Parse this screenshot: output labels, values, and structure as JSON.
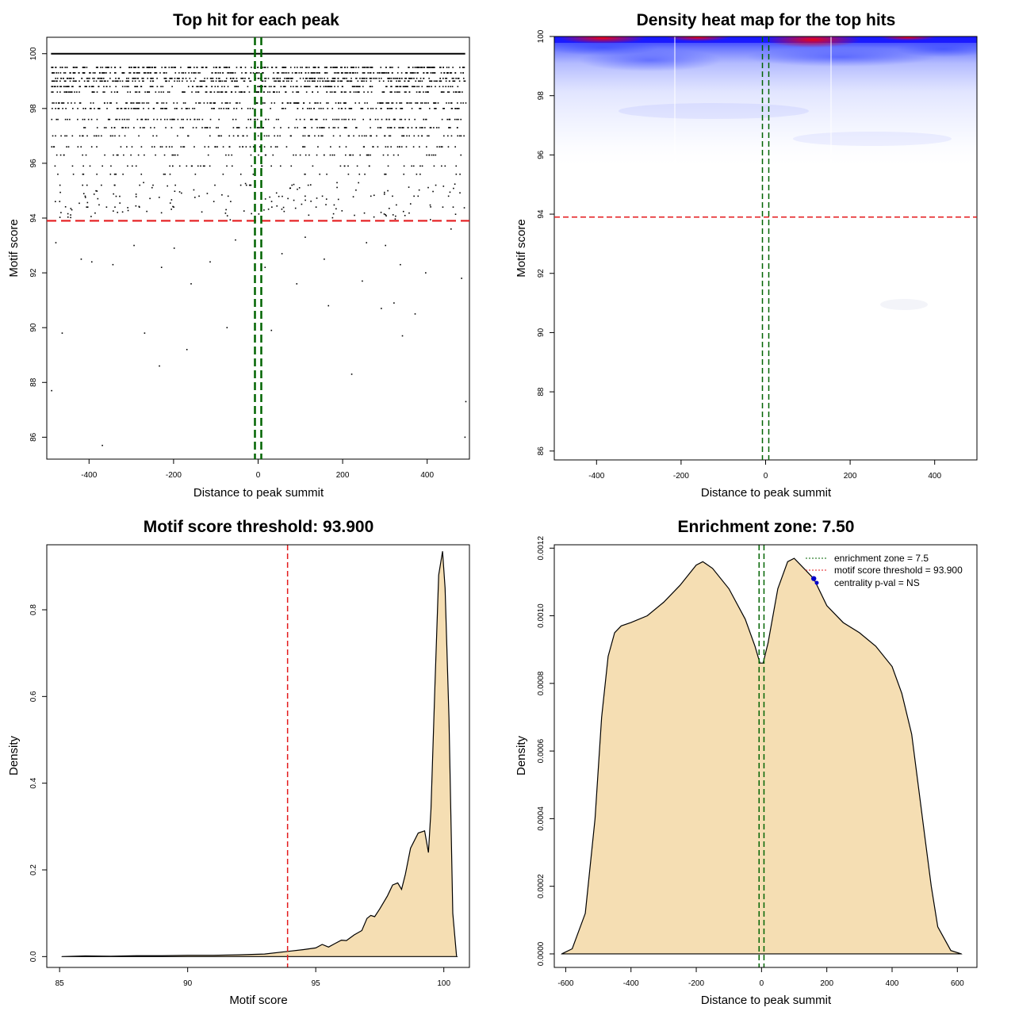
{
  "colors": {
    "threshold_line": "#e41a1c",
    "zone_line": "#006400",
    "fill": "#f5deb3",
    "heat_low": "#0000ff",
    "heat_high": "#ff0000",
    "point": "#0000cc"
  },
  "chart_data": [
    {
      "type": "scatter",
      "title": "Top hit for each peak",
      "xlabel": "Distance to peak summit",
      "ylabel": "Motif score",
      "xlim": [
        -500,
        500
      ],
      "ylim": [
        85.2,
        100.6
      ],
      "xticks": [
        -400,
        -200,
        0,
        200,
        400
      ],
      "yticks": [
        86,
        88,
        90,
        92,
        94,
        96,
        98,
        100
      ],
      "threshold": 93.9,
      "zone": [
        -7.5,
        7.5
      ],
      "score_levels": [
        100.0,
        99.5,
        99.3,
        99.1,
        99.0,
        98.8,
        98.6,
        98.2,
        98.0,
        97.6,
        97.3,
        97.0,
        96.6,
        96.3,
        95.9,
        95.6,
        95.2,
        94.8,
        94.4
      ],
      "outliers": [
        {
          "x": -490,
          "y": 87.7
        },
        {
          "x": -465,
          "y": 89.8
        },
        {
          "x": -370,
          "y": 85.7
        },
        {
          "x": -270,
          "y": 89.8
        },
        {
          "x": -235,
          "y": 88.6
        },
        {
          "x": -170,
          "y": 89.2
        },
        {
          "x": -75,
          "y": 90.0
        },
        {
          "x": 30,
          "y": 89.9
        },
        {
          "x": 220,
          "y": 88.3
        },
        {
          "x": 340,
          "y": 89.7
        },
        {
          "x": 490,
          "y": 87.3
        },
        {
          "x": 488,
          "y": 86.0
        },
        {
          "x": 165,
          "y": 90.8
        },
        {
          "x": 290,
          "y": 90.7
        },
        {
          "x": 320,
          "y": 90.9
        },
        {
          "x": 370,
          "y": 90.5
        },
        {
          "x": 480,
          "y": 91.8
        },
        {
          "x": -160,
          "y": 91.6
        },
        {
          "x": 90,
          "y": 91.6
        },
        {
          "x": 245,
          "y": 91.7
        },
        {
          "x": -345,
          "y": 92.3
        },
        {
          "x": 15,
          "y": 92.2
        },
        {
          "x": 455,
          "y": 93.6
        },
        {
          "x": -480,
          "y": 93.1
        },
        {
          "x": -420,
          "y": 92.5
        },
        {
          "x": -395,
          "y": 92.4
        },
        {
          "x": -230,
          "y": 92.2
        },
        {
          "x": -115,
          "y": 92.4
        },
        {
          "x": 55,
          "y": 92.7
        },
        {
          "x": 155,
          "y": 92.5
        },
        {
          "x": 335,
          "y": 92.3
        },
        {
          "x": 395,
          "y": 92.0
        },
        {
          "x": -295,
          "y": 93.0
        },
        {
          "x": -200,
          "y": 92.9
        },
        {
          "x": -55,
          "y": 93.2
        },
        {
          "x": 110,
          "y": 93.3
        },
        {
          "x": 255,
          "y": 93.1
        },
        {
          "x": 300,
          "y": 93.0
        }
      ]
    },
    {
      "type": "heatmap",
      "title": "Density heat map for the top hits",
      "xlabel": "Distance to peak summit",
      "ylabel": "Motif score",
      "xlim": [
        -500,
        500
      ],
      "ylim": [
        85.7,
        100.0
      ],
      "xticks": [
        -400,
        -200,
        0,
        200,
        400
      ],
      "yticks": [
        86,
        88,
        90,
        92,
        94,
        96,
        98,
        100
      ],
      "threshold": 93.9,
      "zone": [
        -7.5,
        7.5
      ]
    },
    {
      "type": "area",
      "title": "Motif score threshold: 93.900",
      "xlabel": "Motif score",
      "ylabel": "Density",
      "xlim": [
        84.5,
        101.0
      ],
      "ylim": [
        -0.025,
        0.95
      ],
      "xticks": [
        85,
        90,
        95,
        100
      ],
      "yticks": [
        0.0,
        0.2,
        0.4,
        0.6,
        0.8
      ],
      "threshold": 93.9,
      "x": [
        85.1,
        86.0,
        87.0,
        88.0,
        89.0,
        90.0,
        91.0,
        92.0,
        93.0,
        93.9,
        94.5,
        95.0,
        95.25,
        95.5,
        95.75,
        96.0,
        96.2,
        96.5,
        96.8,
        97.0,
        97.15,
        97.3,
        97.5,
        97.8,
        98.0,
        98.2,
        98.35,
        98.5,
        98.7,
        99.0,
        99.25,
        99.4,
        99.5,
        99.65,
        99.8,
        99.95,
        100.05,
        100.2,
        100.35,
        100.5
      ],
      "y": [
        0.0,
        0.0015,
        0.001,
        0.002,
        0.002,
        0.003,
        0.003,
        0.004,
        0.006,
        0.012,
        0.016,
        0.02,
        0.028,
        0.022,
        0.03,
        0.038,
        0.037,
        0.05,
        0.06,
        0.088,
        0.095,
        0.092,
        0.11,
        0.14,
        0.165,
        0.17,
        0.155,
        0.19,
        0.25,
        0.285,
        0.29,
        0.24,
        0.34,
        0.62,
        0.88,
        0.935,
        0.85,
        0.55,
        0.1,
        0.0
      ]
    },
    {
      "type": "area",
      "title": "Enrichment zone: 7.50",
      "xlabel": "Distance to peak summit",
      "ylabel": "Density",
      "xlim": [
        -635,
        660
      ],
      "ylim": [
        -4e-05,
        0.00121
      ],
      "xticks": [
        -600,
        -400,
        -200,
        0,
        200,
        400,
        600
      ],
      "yticks": [
        "0.0000",
        "0.0002",
        "0.0004",
        "0.0006",
        "0.0008",
        "0.0010",
        "0.0012"
      ],
      "zone": [
        -7.5,
        7.5
      ],
      "x": [
        -612,
        -580,
        -540,
        -510,
        -490,
        -470,
        -450,
        -430,
        -400,
        -350,
        -300,
        -250,
        -200,
        -180,
        -150,
        -100,
        -50,
        -20,
        -5,
        5,
        20,
        50,
        80,
        100,
        120,
        150,
        160,
        200,
        250,
        300,
        350,
        400,
        430,
        460,
        480,
        500,
        520,
        540,
        580,
        612
      ],
      "y": [
        0.0,
        1.5e-05,
        0.00012,
        0.0004,
        0.0007,
        0.00088,
        0.00095,
        0.00097,
        0.00098,
        0.001,
        0.00104,
        0.00109,
        0.00115,
        0.00116,
        0.00114,
        0.00108,
        0.00099,
        0.00091,
        0.00086,
        0.00086,
        0.00092,
        0.00108,
        0.00116,
        0.00117,
        0.00115,
        0.00112,
        0.00111,
        0.00103,
        0.00098,
        0.00095,
        0.00091,
        0.00085,
        0.00077,
        0.00065,
        0.0005,
        0.00035,
        0.0002,
        8e-05,
        1e-05,
        0.0
      ],
      "centrality_point": {
        "x": 160,
        "y": 0.00111
      },
      "legend": [
        "enrichment zone = 7.5",
        "motif score threshold = 93.900",
        "centrality p-val = NS"
      ]
    }
  ]
}
